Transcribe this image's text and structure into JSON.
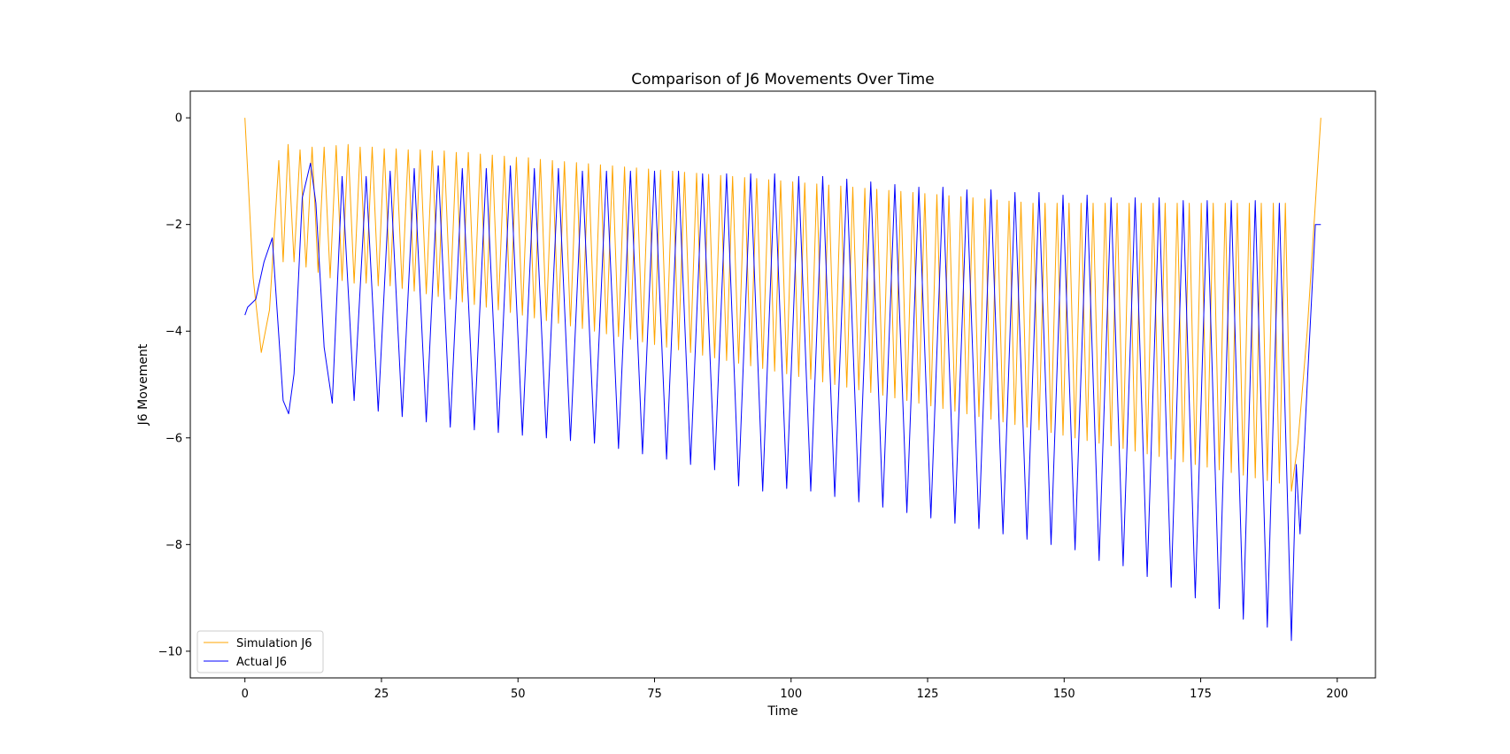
{
  "chart_data": {
    "type": "line",
    "title": "Comparison of J6 Movements Over Time",
    "xlabel": "Time",
    "ylabel": "J6 Movement",
    "xlim": [
      -10,
      207
    ],
    "ylim": [
      -10.5,
      0.5
    ],
    "xticks": [
      0,
      25,
      50,
      75,
      100,
      125,
      150,
      175,
      200
    ],
    "yticks": [
      0,
      -2,
      -4,
      -6,
      -8,
      -10
    ],
    "grid": false,
    "legend_position": "lower-left",
    "series": [
      {
        "name": "Simulation J6",
        "color": "#ffa500",
        "sampling": "Oscillation of about 2.1 time units period; lows fall from about -2.7 to -7.0 and highs from about -0.5 to -1.6 across the cycles",
        "points": [
          [
            0,
            0
          ],
          [
            1.5,
            -3.0
          ],
          [
            3,
            -4.4
          ],
          [
            4.5,
            -3.6
          ],
          [
            6.2,
            -0.8
          ],
          [
            7,
            -2.7
          ],
          [
            7.9,
            -0.5
          ],
          [
            9,
            -2.7
          ],
          [
            10.1,
            -0.6
          ],
          [
            11.2,
            -2.8
          ],
          [
            12.3,
            -0.55
          ],
          [
            13.4,
            -2.9
          ],
          [
            14.5,
            -0.55
          ],
          [
            15.6,
            -3.0
          ],
          [
            16.7,
            -0.52
          ],
          [
            17.8,
            -3.05
          ],
          [
            18.9,
            -0.5
          ],
          [
            20.0,
            -3.1
          ],
          [
            21.1,
            -0.55
          ],
          [
            22.2,
            -3.1
          ],
          [
            23.3,
            -0.55
          ],
          [
            24.4,
            -3.15
          ],
          [
            25.5,
            -0.58
          ],
          [
            26.6,
            -3.15
          ],
          [
            27.7,
            -0.58
          ],
          [
            28.8,
            -3.2
          ],
          [
            29.9,
            -0.6
          ],
          [
            31.0,
            -3.25
          ],
          [
            32.1,
            -0.6
          ],
          [
            33.2,
            -3.3
          ],
          [
            34.3,
            -0.62
          ],
          [
            35.4,
            -3.35
          ],
          [
            36.5,
            -0.62
          ],
          [
            37.6,
            -3.4
          ],
          [
            38.7,
            -0.65
          ],
          [
            39.8,
            -3.45
          ],
          [
            40.9,
            -0.65
          ],
          [
            42.0,
            -3.5
          ],
          [
            43.1,
            -0.68
          ],
          [
            44.2,
            -3.55
          ],
          [
            45.3,
            -0.7
          ],
          [
            46.4,
            -3.6
          ],
          [
            47.5,
            -0.72
          ],
          [
            48.6,
            -3.65
          ],
          [
            49.7,
            -0.74
          ],
          [
            50.8,
            -3.7
          ],
          [
            51.9,
            -0.75
          ],
          [
            53.0,
            -3.75
          ],
          [
            54.1,
            -0.78
          ],
          [
            55.2,
            -3.8
          ],
          [
            56.3,
            -0.8
          ],
          [
            57.4,
            -3.85
          ],
          [
            58.5,
            -0.82
          ],
          [
            59.6,
            -3.9
          ],
          [
            60.7,
            -0.84
          ],
          [
            61.8,
            -3.95
          ],
          [
            62.9,
            -0.86
          ],
          [
            64.0,
            -4.0
          ],
          [
            65.1,
            -0.88
          ],
          [
            66.2,
            -4.05
          ],
          [
            67.3,
            -0.9
          ],
          [
            68.4,
            -4.1
          ],
          [
            69.5,
            -0.92
          ],
          [
            70.6,
            -4.15
          ],
          [
            71.7,
            -0.94
          ],
          [
            72.8,
            -4.2
          ],
          [
            73.9,
            -0.96
          ],
          [
            75.0,
            -4.25
          ],
          [
            76.1,
            -0.98
          ],
          [
            77.2,
            -4.3
          ],
          [
            78.3,
            -1.0
          ],
          [
            79.4,
            -4.35
          ],
          [
            80.5,
            -1.02
          ],
          [
            81.6,
            -4.4
          ],
          [
            82.7,
            -1.04
          ],
          [
            83.8,
            -4.45
          ],
          [
            84.9,
            -1.06
          ],
          [
            86.0,
            -4.5
          ],
          [
            87.1,
            -1.08
          ],
          [
            88.2,
            -4.55
          ],
          [
            89.3,
            -1.1
          ],
          [
            90.4,
            -4.6
          ],
          [
            91.5,
            -1.12
          ],
          [
            92.6,
            -4.65
          ],
          [
            93.7,
            -1.14
          ],
          [
            94.8,
            -4.7
          ],
          [
            95.9,
            -1.16
          ],
          [
            97.0,
            -4.75
          ],
          [
            98.1,
            -1.18
          ],
          [
            99.2,
            -4.8
          ],
          [
            100.3,
            -1.2
          ],
          [
            101.4,
            -4.85
          ],
          [
            102.5,
            -1.22
          ],
          [
            103.6,
            -4.9
          ],
          [
            104.7,
            -1.24
          ],
          [
            105.8,
            -4.95
          ],
          [
            106.9,
            -1.26
          ],
          [
            108.0,
            -5.0
          ],
          [
            109.1,
            -1.28
          ],
          [
            110.2,
            -5.05
          ],
          [
            111.3,
            -1.3
          ],
          [
            112.4,
            -5.1
          ],
          [
            113.5,
            -1.32
          ],
          [
            114.6,
            -5.15
          ],
          [
            115.7,
            -1.34
          ],
          [
            116.8,
            -5.2
          ],
          [
            117.9,
            -1.36
          ],
          [
            119.0,
            -5.25
          ],
          [
            120.1,
            -1.38
          ],
          [
            121.2,
            -5.3
          ],
          [
            122.3,
            -1.4
          ],
          [
            123.4,
            -5.35
          ],
          [
            124.5,
            -1.42
          ],
          [
            125.6,
            -5.4
          ],
          [
            126.7,
            -1.44
          ],
          [
            127.8,
            -5.45
          ],
          [
            128.9,
            -1.46
          ],
          [
            130.0,
            -5.5
          ],
          [
            131.1,
            -1.48
          ],
          [
            132.2,
            -5.55
          ],
          [
            133.3,
            -1.5
          ],
          [
            134.4,
            -5.6
          ],
          [
            135.5,
            -1.52
          ],
          [
            136.6,
            -5.65
          ],
          [
            137.7,
            -1.54
          ],
          [
            138.8,
            -5.7
          ],
          [
            139.9,
            -1.56
          ],
          [
            141.0,
            -5.75
          ],
          [
            142.1,
            -1.58
          ],
          [
            143.2,
            -5.8
          ],
          [
            144.3,
            -1.6
          ],
          [
            145.4,
            -5.85
          ],
          [
            146.5,
            -1.6
          ],
          [
            147.6,
            -5.9
          ],
          [
            148.7,
            -1.6
          ],
          [
            149.8,
            -5.95
          ],
          [
            150.9,
            -1.6
          ],
          [
            152.0,
            -6.0
          ],
          [
            153.1,
            -1.6
          ],
          [
            154.2,
            -6.05
          ],
          [
            155.3,
            -1.6
          ],
          [
            156.4,
            -6.1
          ],
          [
            157.5,
            -1.6
          ],
          [
            158.6,
            -6.15
          ],
          [
            159.7,
            -1.6
          ],
          [
            160.8,
            -6.2
          ],
          [
            161.9,
            -1.6
          ],
          [
            163.0,
            -6.25
          ],
          [
            164.1,
            -1.6
          ],
          [
            165.2,
            -6.3
          ],
          [
            166.3,
            -1.6
          ],
          [
            167.4,
            -6.35
          ],
          [
            168.5,
            -1.6
          ],
          [
            169.6,
            -6.4
          ],
          [
            170.7,
            -1.6
          ],
          [
            171.8,
            -6.45
          ],
          [
            172.9,
            -1.6
          ],
          [
            174.0,
            -6.5
          ],
          [
            175.1,
            -1.6
          ],
          [
            176.2,
            -6.55
          ],
          [
            177.3,
            -1.6
          ],
          [
            178.4,
            -6.6
          ],
          [
            179.5,
            -1.6
          ],
          [
            180.6,
            -6.65
          ],
          [
            181.7,
            -1.6
          ],
          [
            182.8,
            -6.7
          ],
          [
            183.9,
            -1.6
          ],
          [
            185.0,
            -6.75
          ],
          [
            186.1,
            -1.6
          ],
          [
            187.2,
            -6.8
          ],
          [
            188.3,
            -1.6
          ],
          [
            189.4,
            -6.85
          ],
          [
            190.5,
            -1.6
          ],
          [
            191.6,
            -7.0
          ],
          [
            192.8,
            -6.1
          ],
          [
            194.5,
            -4.0
          ],
          [
            197,
            0
          ]
        ]
      },
      {
        "name": "Actual J6",
        "color": "#0000ff",
        "sampling": "Oscillation of about 2.15 time units period; lows deepen from about -5.3 to -9.8 and highs from about -0.85 to -1.6 across the cycles",
        "points": [
          [
            0,
            -3.7
          ],
          [
            0.5,
            -3.55
          ],
          [
            2,
            -3.4
          ],
          [
            3.5,
            -2.7
          ],
          [
            5,
            -2.25
          ],
          [
            7,
            -5.3
          ],
          [
            8,
            -5.55
          ],
          [
            9,
            -4.8
          ],
          [
            10.5,
            -1.5
          ],
          [
            12,
            -0.85
          ],
          [
            13,
            -1.6
          ],
          [
            14.5,
            -4.3
          ],
          [
            16,
            -5.35
          ],
          [
            17.8,
            -1.1
          ],
          [
            20,
            -5.3
          ],
          [
            22.2,
            -1.1
          ],
          [
            24.4,
            -5.5
          ],
          [
            26.6,
            -1.0
          ],
          [
            28.8,
            -5.6
          ],
          [
            31.0,
            -0.95
          ],
          [
            33.2,
            -5.7
          ],
          [
            35.4,
            -0.9
          ],
          [
            37.6,
            -5.8
          ],
          [
            39.8,
            -0.95
          ],
          [
            42.0,
            -5.85
          ],
          [
            44.2,
            -0.95
          ],
          [
            46.4,
            -5.9
          ],
          [
            48.6,
            -0.9
          ],
          [
            50.8,
            -5.95
          ],
          [
            53.0,
            -0.95
          ],
          [
            55.2,
            -6.0
          ],
          [
            57.4,
            -0.95
          ],
          [
            59.6,
            -6.05
          ],
          [
            61.8,
            -1.0
          ],
          [
            64.0,
            -6.1
          ],
          [
            66.2,
            -1.0
          ],
          [
            68.4,
            -6.2
          ],
          [
            70.6,
            -1.0
          ],
          [
            72.8,
            -6.3
          ],
          [
            75.0,
            -1.0
          ],
          [
            77.2,
            -6.4
          ],
          [
            79.4,
            -1.0
          ],
          [
            81.6,
            -6.5
          ],
          [
            83.8,
            -1.05
          ],
          [
            86.0,
            -6.6
          ],
          [
            88.2,
            -1.05
          ],
          [
            90.4,
            -6.9
          ],
          [
            92.6,
            -1.05
          ],
          [
            94.8,
            -7.0
          ],
          [
            97.0,
            -1.05
          ],
          [
            99.2,
            -6.95
          ],
          [
            101.4,
            -1.1
          ],
          [
            103.6,
            -7.0
          ],
          [
            105.8,
            -1.1
          ],
          [
            108.0,
            -7.1
          ],
          [
            110.2,
            -1.15
          ],
          [
            112.4,
            -7.2
          ],
          [
            114.6,
            -1.2
          ],
          [
            116.8,
            -7.3
          ],
          [
            119.0,
            -1.25
          ],
          [
            121.2,
            -7.4
          ],
          [
            123.4,
            -1.3
          ],
          [
            125.6,
            -7.5
          ],
          [
            127.8,
            -1.3
          ],
          [
            130.0,
            -7.6
          ],
          [
            132.2,
            -1.35
          ],
          [
            134.4,
            -7.7
          ],
          [
            136.6,
            -1.35
          ],
          [
            138.8,
            -7.8
          ],
          [
            141.0,
            -1.4
          ],
          [
            143.2,
            -7.9
          ],
          [
            145.4,
            -1.4
          ],
          [
            147.6,
            -8.0
          ],
          [
            149.8,
            -1.45
          ],
          [
            152.0,
            -8.1
          ],
          [
            154.2,
            -1.45
          ],
          [
            156.4,
            -8.3
          ],
          [
            158.6,
            -1.5
          ],
          [
            160.8,
            -8.4
          ],
          [
            163.0,
            -1.5
          ],
          [
            165.2,
            -8.6
          ],
          [
            167.4,
            -1.5
          ],
          [
            169.6,
            -8.8
          ],
          [
            171.8,
            -1.55
          ],
          [
            174.0,
            -9.0
          ],
          [
            176.2,
            -1.55
          ],
          [
            178.4,
            -9.2
          ],
          [
            180.6,
            -1.55
          ],
          [
            182.8,
            -9.4
          ],
          [
            185.0,
            -1.55
          ],
          [
            187.2,
            -9.55
          ],
          [
            189.4,
            -1.6
          ],
          [
            191.6,
            -9.8
          ],
          [
            192.5,
            -6.5
          ],
          [
            193.2,
            -7.8
          ],
          [
            194.5,
            -5.0
          ],
          [
            196,
            -2.0
          ],
          [
            197,
            -2.0
          ]
        ]
      }
    ]
  }
}
